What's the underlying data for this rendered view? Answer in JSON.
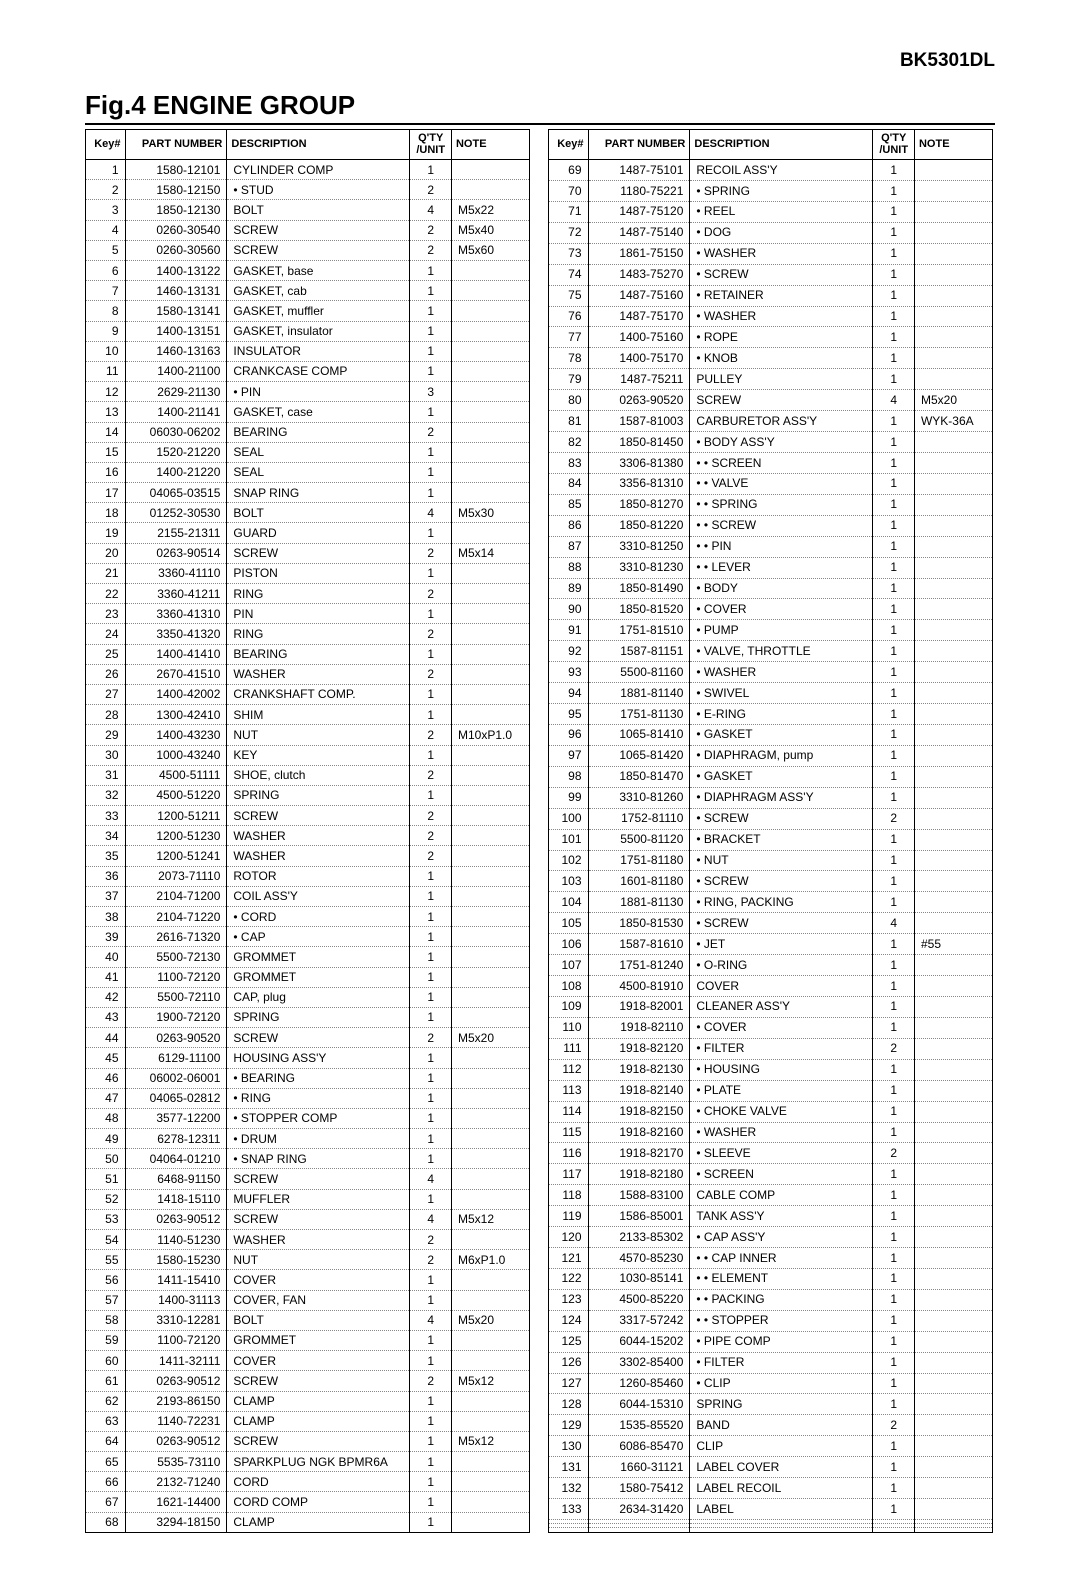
{
  "model": "BK5301DL",
  "title": "Fig.4  ENGINE GROUP",
  "headers": {
    "key": "Key#",
    "part": "PART NUMBER",
    "desc": "DESCRIPTION",
    "qty": "Q'TY /UNIT",
    "note": "NOTE"
  },
  "left": [
    {
      "k": "1",
      "p": "1580-12101",
      "d": "CYLINDER COMP",
      "q": "1",
      "n": ""
    },
    {
      "k": "2",
      "p": "1580-12150",
      "d": "• STUD",
      "q": "2",
      "n": ""
    },
    {
      "k": "3",
      "p": "1850-12130",
      "d": "BOLT",
      "q": "4",
      "n": "M5x22"
    },
    {
      "k": "4",
      "p": "0260-30540",
      "d": "SCREW",
      "q": "2",
      "n": "M5x40"
    },
    {
      "k": "5",
      "p": "0260-30560",
      "d": "SCREW",
      "q": "2",
      "n": "M5x60"
    },
    {
      "k": "6",
      "p": "1400-13122",
      "d": "GASKET, base",
      "q": "1",
      "n": ""
    },
    {
      "k": "7",
      "p": "1460-13131",
      "d": "GASKET, cab",
      "q": "1",
      "n": ""
    },
    {
      "k": "8",
      "p": "1580-13141",
      "d": "GASKET, muffler",
      "q": "1",
      "n": ""
    },
    {
      "k": "9",
      "p": "1400-13151",
      "d": "GASKET, insulator",
      "q": "1",
      "n": ""
    },
    {
      "k": "10",
      "p": "1460-13163",
      "d": "INSULATOR",
      "q": "1",
      "n": ""
    },
    {
      "k": "11",
      "p": "1400-21100",
      "d": "CRANKCASE COMP",
      "q": "1",
      "n": ""
    },
    {
      "k": "12",
      "p": "2629-21130",
      "d": "• PIN",
      "q": "3",
      "n": ""
    },
    {
      "k": "13",
      "p": "1400-21141",
      "d": "GASKET, case",
      "q": "1",
      "n": ""
    },
    {
      "k": "14",
      "p": "06030-06202",
      "d": "BEARING",
      "q": "2",
      "n": ""
    },
    {
      "k": "15",
      "p": "1520-21220",
      "d": "SEAL",
      "q": "1",
      "n": ""
    },
    {
      "k": "16",
      "p": "1400-21220",
      "d": "SEAL",
      "q": "1",
      "n": ""
    },
    {
      "k": "17",
      "p": "04065-03515",
      "d": "SNAP RING",
      "q": "1",
      "n": ""
    },
    {
      "k": "18",
      "p": "01252-30530",
      "d": "BOLT",
      "q": "4",
      "n": "M5x30"
    },
    {
      "k": "19",
      "p": "2155-21311",
      "d": "GUARD",
      "q": "1",
      "n": ""
    },
    {
      "k": "20",
      "p": "0263-90514",
      "d": "SCREW",
      "q": "2",
      "n": "M5x14"
    },
    {
      "k": "21",
      "p": "3360-41110",
      "d": "PISTON",
      "q": "1",
      "n": ""
    },
    {
      "k": "22",
      "p": "3360-41211",
      "d": "RING",
      "q": "2",
      "n": ""
    },
    {
      "k": "23",
      "p": "3360-41310",
      "d": "PIN",
      "q": "1",
      "n": ""
    },
    {
      "k": "24",
      "p": "3350-41320",
      "d": "RING",
      "q": "2",
      "n": ""
    },
    {
      "k": "25",
      "p": "1400-41410",
      "d": "BEARING",
      "q": "1",
      "n": ""
    },
    {
      "k": "26",
      "p": "2670-41510",
      "d": "WASHER",
      "q": "2",
      "n": ""
    },
    {
      "k": "27",
      "p": "1400-42002",
      "d": "CRANKSHAFT COMP.",
      "q": "1",
      "n": ""
    },
    {
      "k": "28",
      "p": "1300-42410",
      "d": "SHIM",
      "q": "1",
      "n": ""
    },
    {
      "k": "29",
      "p": "1400-43230",
      "d": "NUT",
      "q": "2",
      "n": "M10xP1.0"
    },
    {
      "k": "30",
      "p": "1000-43240",
      "d": "KEY",
      "q": "1",
      "n": ""
    },
    {
      "k": "31",
      "p": "4500-51111",
      "d": "SHOE, clutch",
      "q": "2",
      "n": ""
    },
    {
      "k": "32",
      "p": "4500-51220",
      "d": "SPRING",
      "q": "1",
      "n": ""
    },
    {
      "k": "33",
      "p": "1200-51211",
      "d": "SCREW",
      "q": "2",
      "n": ""
    },
    {
      "k": "34",
      "p": "1200-51230",
      "d": "WASHER",
      "q": "2",
      "n": ""
    },
    {
      "k": "35",
      "p": "1200-51241",
      "d": "WASHER",
      "q": "2",
      "n": ""
    },
    {
      "k": "36",
      "p": "2073-71110",
      "d": "ROTOR",
      "q": "1",
      "n": ""
    },
    {
      "k": "37",
      "p": "2104-71200",
      "d": "COIL ASS'Y",
      "q": "1",
      "n": ""
    },
    {
      "k": "38",
      "p": "2104-71220",
      "d": "• CORD",
      "q": "1",
      "n": ""
    },
    {
      "k": "39",
      "p": "2616-71320",
      "d": "• CAP",
      "q": "1",
      "n": ""
    },
    {
      "k": "40",
      "p": "5500-72130",
      "d": "GROMMET",
      "q": "1",
      "n": ""
    },
    {
      "k": "41",
      "p": "1100-72120",
      "d": "GROMMET",
      "q": "1",
      "n": ""
    },
    {
      "k": "42",
      "p": "5500-72110",
      "d": "CAP, plug",
      "q": "1",
      "n": ""
    },
    {
      "k": "43",
      "p": "1900-72120",
      "d": "SPRING",
      "q": "1",
      "n": ""
    },
    {
      "k": "44",
      "p": "0263-90520",
      "d": "SCREW",
      "q": "2",
      "n": "M5x20"
    },
    {
      "k": "45",
      "p": "6129-11100",
      "d": "HOUSING ASS'Y",
      "q": "1",
      "n": ""
    },
    {
      "k": "46",
      "p": "06002-06001",
      "d": "• BEARING",
      "q": "1",
      "n": ""
    },
    {
      "k": "47",
      "p": "04065-02812",
      "d": "• RING",
      "q": "1",
      "n": ""
    },
    {
      "k": "48",
      "p": "3577-12200",
      "d": "• STOPPER COMP",
      "q": "1",
      "n": ""
    },
    {
      "k": "49",
      "p": "6278-12311",
      "d": "• DRUM",
      "q": "1",
      "n": ""
    },
    {
      "k": "50",
      "p": "04064-01210",
      "d": "• SNAP RING",
      "q": "1",
      "n": ""
    },
    {
      "k": "51",
      "p": "6468-91150",
      "d": "SCREW",
      "q": "4",
      "n": ""
    },
    {
      "k": "52",
      "p": "1418-15110",
      "d": "MUFFLER",
      "q": "1",
      "n": ""
    },
    {
      "k": "53",
      "p": "0263-90512",
      "d": "SCREW",
      "q": "4",
      "n": "M5x12"
    },
    {
      "k": "54",
      "p": "1140-51230",
      "d": "WASHER",
      "q": "2",
      "n": ""
    },
    {
      "k": "55",
      "p": "1580-15230",
      "d": "NUT",
      "q": "2",
      "n": "M6xP1.0"
    },
    {
      "k": "56",
      "p": "1411-15410",
      "d": "COVER",
      "q": "1",
      "n": ""
    },
    {
      "k": "57",
      "p": "1400-31113",
      "d": "COVER, FAN",
      "q": "1",
      "n": ""
    },
    {
      "k": "58",
      "p": "3310-12281",
      "d": "BOLT",
      "q": "4",
      "n": "M5x20"
    },
    {
      "k": "59",
      "p": "1100-72120",
      "d": "GROMMET",
      "q": "1",
      "n": ""
    },
    {
      "k": "60",
      "p": "1411-32111",
      "d": "COVER",
      "q": "1",
      "n": ""
    },
    {
      "k": "61",
      "p": "0263-90512",
      "d": "SCREW",
      "q": "2",
      "n": "M5x12"
    },
    {
      "k": "62",
      "p": "2193-86150",
      "d": "CLAMP",
      "q": "1",
      "n": ""
    },
    {
      "k": "63",
      "p": "1140-72231",
      "d": "CLAMP",
      "q": "1",
      "n": ""
    },
    {
      "k": "64",
      "p": "0263-90512",
      "d": "SCREW",
      "q": "1",
      "n": "M5x12"
    },
    {
      "k": "65",
      "p": "5535-73110",
      "d": "SPARKPLUG NGK BPMR6A",
      "q": "1",
      "n": ""
    },
    {
      "k": "66",
      "p": "2132-71240",
      "d": "CORD",
      "q": "1",
      "n": ""
    },
    {
      "k": "67",
      "p": "1621-14400",
      "d": "CORD COMP",
      "q": "1",
      "n": ""
    },
    {
      "k": "68",
      "p": "3294-18150",
      "d": "CLAMP",
      "q": "1",
      "n": ""
    }
  ],
  "right": [
    {
      "k": "69",
      "p": "1487-75101",
      "d": "RECOIL ASS'Y",
      "q": "1",
      "n": ""
    },
    {
      "k": "70",
      "p": "1180-75221",
      "d": "• SPRING",
      "q": "1",
      "n": ""
    },
    {
      "k": "71",
      "p": "1487-75120",
      "d": "• REEL",
      "q": "1",
      "n": ""
    },
    {
      "k": "72",
      "p": "1487-75140",
      "d": "• DOG",
      "q": "1",
      "n": ""
    },
    {
      "k": "73",
      "p": "1861-75150",
      "d": "• WASHER",
      "q": "1",
      "n": ""
    },
    {
      "k": "74",
      "p": "1483-75270",
      "d": "• SCREW",
      "q": "1",
      "n": ""
    },
    {
      "k": "75",
      "p": "1487-75160",
      "d": "• RETAINER",
      "q": "1",
      "n": ""
    },
    {
      "k": "76",
      "p": "1487-75170",
      "d": "• WASHER",
      "q": "1",
      "n": ""
    },
    {
      "k": "77",
      "p": "1400-75160",
      "d": "• ROPE",
      "q": "1",
      "n": ""
    },
    {
      "k": "78",
      "p": "1400-75170",
      "d": "• KNOB",
      "q": "1",
      "n": ""
    },
    {
      "k": "79",
      "p": "1487-75211",
      "d": "PULLEY",
      "q": "1",
      "n": ""
    },
    {
      "k": "80",
      "p": "0263-90520",
      "d": "SCREW",
      "q": "4",
      "n": "M5x20"
    },
    {
      "k": "81",
      "p": "1587-81003",
      "d": "CARBURETOR ASS'Y",
      "q": "1",
      "n": "WYK-36A"
    },
    {
      "k": "82",
      "p": "1850-81450",
      "d": "• BODY ASS'Y",
      "q": "1",
      "n": ""
    },
    {
      "k": "83",
      "p": "3306-81380",
      "d": "• • SCREEN",
      "q": "1",
      "n": ""
    },
    {
      "k": "84",
      "p": "3356-81310",
      "d": "• • VALVE",
      "q": "1",
      "n": ""
    },
    {
      "k": "85",
      "p": "1850-81270",
      "d": "• • SPRING",
      "q": "1",
      "n": ""
    },
    {
      "k": "86",
      "p": "1850-81220",
      "d": "• • SCREW",
      "q": "1",
      "n": ""
    },
    {
      "k": "87",
      "p": "3310-81250",
      "d": "• • PIN",
      "q": "1",
      "n": ""
    },
    {
      "k": "88",
      "p": "3310-81230",
      "d": "• • LEVER",
      "q": "1",
      "n": ""
    },
    {
      "k": "89",
      "p": "1850-81490",
      "d": "• BODY",
      "q": "1",
      "n": ""
    },
    {
      "k": "90",
      "p": "1850-81520",
      "d": "• COVER",
      "q": "1",
      "n": ""
    },
    {
      "k": "91",
      "p": "1751-81510",
      "d": "• PUMP",
      "q": "1",
      "n": ""
    },
    {
      "k": "92",
      "p": "1587-81151",
      "d": "• VALVE, THROTTLE",
      "q": "1",
      "n": ""
    },
    {
      "k": "93",
      "p": "5500-81160",
      "d": "• WASHER",
      "q": "1",
      "n": ""
    },
    {
      "k": "94",
      "p": "1881-81140",
      "d": "• SWIVEL",
      "q": "1",
      "n": ""
    },
    {
      "k": "95",
      "p": "1751-81130",
      "d": "• E-RING",
      "q": "1",
      "n": ""
    },
    {
      "k": "96",
      "p": "1065-81410",
      "d": "• GASKET",
      "q": "1",
      "n": ""
    },
    {
      "k": "97",
      "p": "1065-81420",
      "d": "• DIAPHRAGM, pump",
      "q": "1",
      "n": ""
    },
    {
      "k": "98",
      "p": "1850-81470",
      "d": "• GASKET",
      "q": "1",
      "n": ""
    },
    {
      "k": "99",
      "p": "3310-81260",
      "d": "• DIAPHRAGM ASS'Y",
      "q": "1",
      "n": ""
    },
    {
      "k": "100",
      "p": "1752-81110",
      "d": "• SCREW",
      "q": "2",
      "n": ""
    },
    {
      "k": "101",
      "p": "5500-81120",
      "d": "• BRACKET",
      "q": "1",
      "n": ""
    },
    {
      "k": "102",
      "p": "1751-81180",
      "d": "• NUT",
      "q": "1",
      "n": ""
    },
    {
      "k": "103",
      "p": "1601-81180",
      "d": "• SCREW",
      "q": "1",
      "n": ""
    },
    {
      "k": "104",
      "p": "1881-81130",
      "d": "• RING, PACKING",
      "q": "1",
      "n": ""
    },
    {
      "k": "105",
      "p": "1850-81530",
      "d": "• SCREW",
      "q": "4",
      "n": ""
    },
    {
      "k": "106",
      "p": "1587-81610",
      "d": "• JET",
      "q": "1",
      "n": "#55"
    },
    {
      "k": "107",
      "p": "1751-81240",
      "d": "• O-RING",
      "q": "1",
      "n": ""
    },
    {
      "k": "108",
      "p": "4500-81910",
      "d": "COVER",
      "q": "1",
      "n": ""
    },
    {
      "k": "109",
      "p": "1918-82001",
      "d": "CLEANER ASS'Y",
      "q": "1",
      "n": ""
    },
    {
      "k": "110",
      "p": "1918-82110",
      "d": "• COVER",
      "q": "1",
      "n": ""
    },
    {
      "k": "111",
      "p": "1918-82120",
      "d": "• FILTER",
      "q": "2",
      "n": ""
    },
    {
      "k": "112",
      "p": "1918-82130",
      "d": "• HOUSING",
      "q": "1",
      "n": ""
    },
    {
      "k": "113",
      "p": "1918-82140",
      "d": "• PLATE",
      "q": "1",
      "n": ""
    },
    {
      "k": "114",
      "p": "1918-82150",
      "d": "• CHOKE VALVE",
      "q": "1",
      "n": ""
    },
    {
      "k": "115",
      "p": "1918-82160",
      "d": "• WASHER",
      "q": "1",
      "n": ""
    },
    {
      "k": "116",
      "p": "1918-82170",
      "d": "• SLEEVE",
      "q": "2",
      "n": ""
    },
    {
      "k": "117",
      "p": "1918-82180",
      "d": "• SCREEN",
      "q": "1",
      "n": ""
    },
    {
      "k": "118",
      "p": "1588-83100",
      "d": "CABLE COMP",
      "q": "1",
      "n": ""
    },
    {
      "k": "119",
      "p": "1586-85001",
      "d": "TANK ASS'Y",
      "q": "1",
      "n": ""
    },
    {
      "k": "120",
      "p": "2133-85302",
      "d": "• CAP ASS'Y",
      "q": "1",
      "n": ""
    },
    {
      "k": "121",
      "p": "4570-85230",
      "d": "• • CAP INNER",
      "q": "1",
      "n": ""
    },
    {
      "k": "122",
      "p": "1030-85141",
      "d": "• • ELEMENT",
      "q": "1",
      "n": ""
    },
    {
      "k": "123",
      "p": "4500-85220",
      "d": "• • PACKING",
      "q": "1",
      "n": ""
    },
    {
      "k": "124",
      "p": "3317-57242",
      "d": "• • STOPPER",
      "q": "1",
      "n": ""
    },
    {
      "k": "125",
      "p": "6044-15202",
      "d": "• PIPE COMP",
      "q": "1",
      "n": ""
    },
    {
      "k": "126",
      "p": "3302-85400",
      "d": "• FILTER",
      "q": "1",
      "n": ""
    },
    {
      "k": "127",
      "p": "1260-85460",
      "d": "• CLIP",
      "q": "1",
      "n": ""
    },
    {
      "k": "128",
      "p": "6044-15310",
      "d": "SPRING",
      "q": "1",
      "n": ""
    },
    {
      "k": "129",
      "p": "1535-85520",
      "d": "BAND",
      "q": "2",
      "n": ""
    },
    {
      "k": "130",
      "p": "6086-85470",
      "d": "CLIP",
      "q": "1",
      "n": ""
    },
    {
      "k": "131",
      "p": "1660-31121",
      "d": "LABEL COVER",
      "q": "1",
      "n": ""
    },
    {
      "k": "132",
      "p": "1580-75412",
      "d": "LABEL RECOIL",
      "q": "1",
      "n": ""
    },
    {
      "k": "133",
      "p": "2634-31420",
      "d": "LABEL",
      "q": "1",
      "n": ""
    },
    {
      "k": "",
      "p": "",
      "d": "",
      "q": "",
      "n": ""
    },
    {
      "k": "",
      "p": "",
      "d": "",
      "q": "",
      "n": ""
    },
    {
      "k": "",
      "p": "",
      "d": "",
      "q": "",
      "n": ""
    }
  ]
}
